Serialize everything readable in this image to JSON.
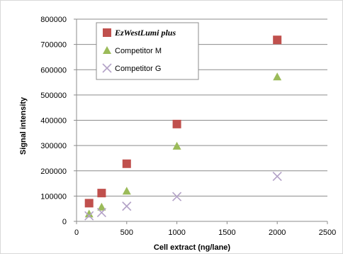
{
  "chart_data": {
    "type": "scatter",
    "title": "",
    "xlabel": "Cell extract (ng/lane)",
    "ylabel": "Signal intensity",
    "xlim": [
      0,
      2500
    ],
    "ylim": [
      0,
      800000
    ],
    "x_ticks": [
      "0",
      "500",
      "1000",
      "1500",
      "2000",
      "2500"
    ],
    "y_ticks": [
      "0",
      "100000",
      "200000",
      "300000",
      "400000",
      "500000",
      "600000",
      "700000",
      "800000"
    ],
    "grid": "horizontal",
    "legend_position": "top-left",
    "series": [
      {
        "name": "EzWestLumi plus",
        "marker": "square",
        "color": "#c0504d",
        "points": [
          {
            "x": 125,
            "y": 72000
          },
          {
            "x": 250,
            "y": 112000
          },
          {
            "x": 500,
            "y": 228000
          },
          {
            "x": 1000,
            "y": 385000
          },
          {
            "x": 2000,
            "y": 718000
          }
        ]
      },
      {
        "name": "Competitor M",
        "marker": "triangle",
        "color": "#9bbb59",
        "points": [
          {
            "x": 125,
            "y": 30000
          },
          {
            "x": 250,
            "y": 57000
          },
          {
            "x": 500,
            "y": 120000
          },
          {
            "x": 1000,
            "y": 298000
          },
          {
            "x": 2000,
            "y": 572000
          }
        ]
      },
      {
        "name": "Competitor G",
        "marker": "x",
        "color": "#b3a2c7",
        "points": [
          {
            "x": 125,
            "y": 22000
          },
          {
            "x": 250,
            "y": 35000
          },
          {
            "x": 500,
            "y": 60000
          },
          {
            "x": 1000,
            "y": 98000
          },
          {
            "x": 2000,
            "y": 178000
          }
        ]
      }
    ]
  }
}
